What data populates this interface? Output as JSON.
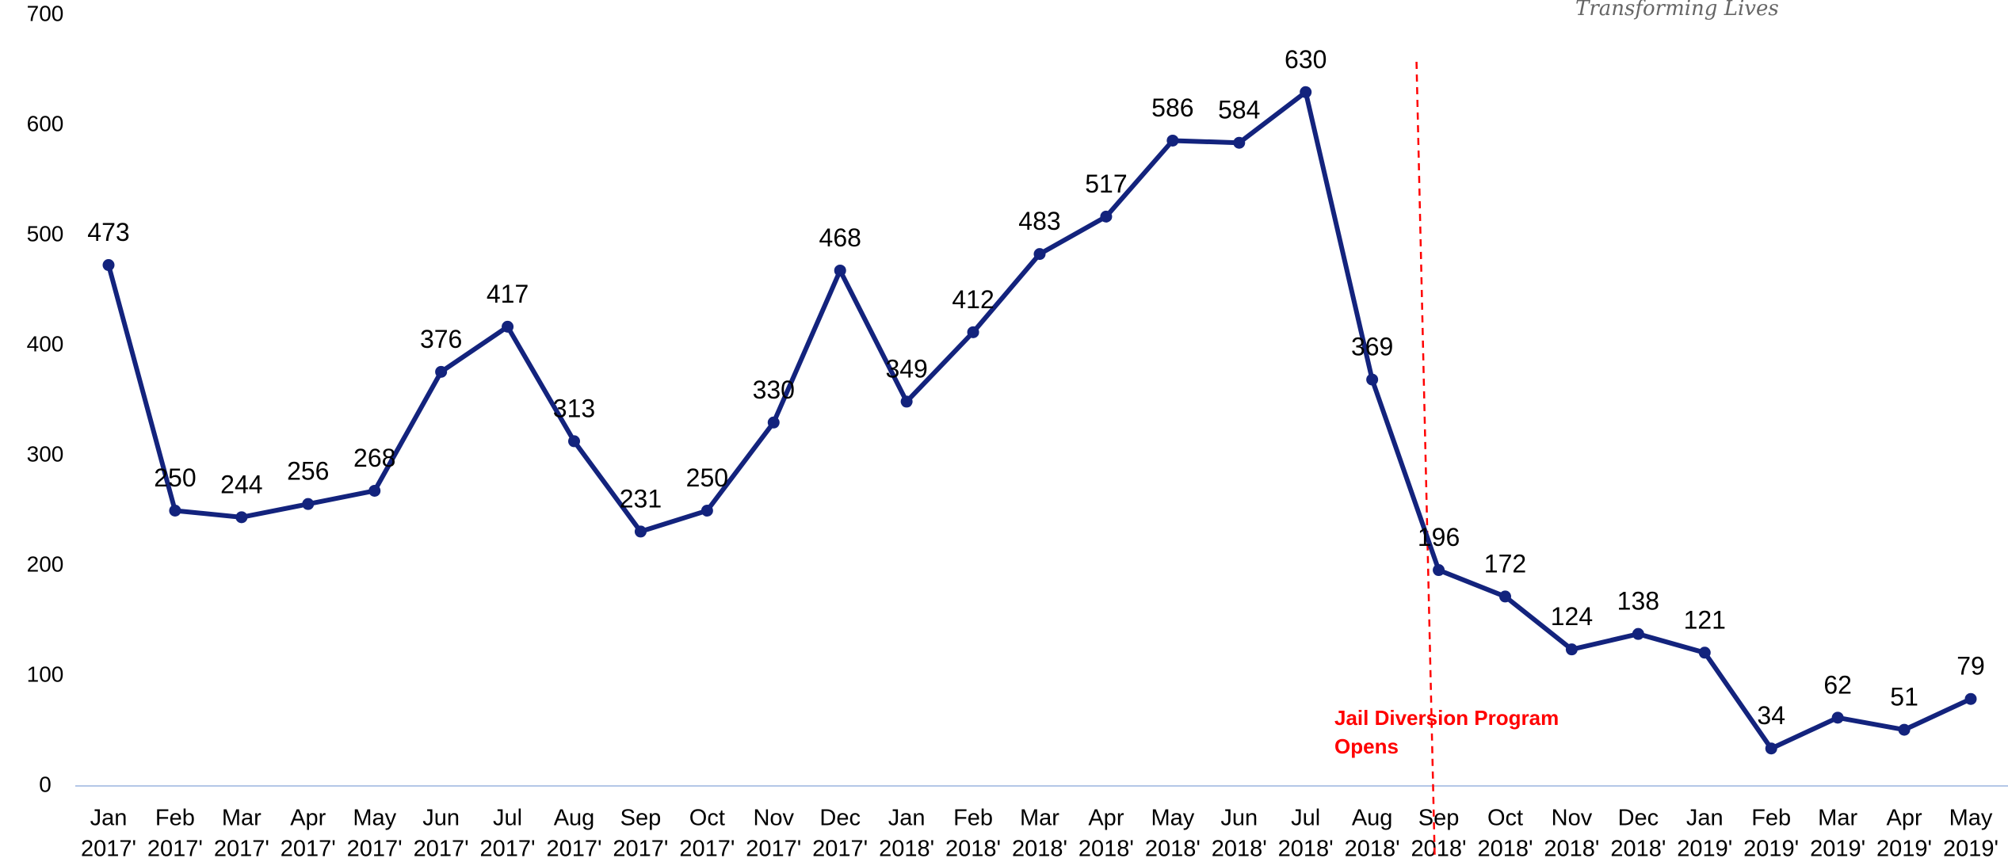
{
  "chart_data": {
    "type": "line",
    "logo_text": "Transforming Lives",
    "categories": [
      [
        "Jan",
        "2017'"
      ],
      [
        "Feb",
        "2017'"
      ],
      [
        "Mar",
        "2017'"
      ],
      [
        "Apr",
        "2017'"
      ],
      [
        "May",
        "2017'"
      ],
      [
        "Jun",
        "2017'"
      ],
      [
        "Jul",
        "2017'"
      ],
      [
        "Aug",
        "2017'"
      ],
      [
        "Sep",
        "2017'"
      ],
      [
        "Oct",
        "2017'"
      ],
      [
        "Nov",
        "2017'"
      ],
      [
        "Dec",
        "2017'"
      ],
      [
        "Jan",
        "2018'"
      ],
      [
        "Feb",
        "2018'"
      ],
      [
        "Mar",
        "2018'"
      ],
      [
        "Apr",
        "2018'"
      ],
      [
        "May",
        "2018'"
      ],
      [
        "Jun",
        "2018'"
      ],
      [
        "Jul",
        "2018'"
      ],
      [
        "Aug",
        "2018'"
      ],
      [
        "Sep",
        "2018'"
      ],
      [
        "Oct",
        "2018'"
      ],
      [
        "Nov",
        "2018'"
      ],
      [
        "Dec",
        "2018'"
      ],
      [
        "Jan",
        "2019'"
      ],
      [
        "Feb",
        "2019'"
      ],
      [
        "Mar",
        "2019'"
      ],
      [
        "Apr",
        "2019'"
      ],
      [
        "May",
        "2019'"
      ]
    ],
    "values": [
      473,
      250,
      244,
      256,
      268,
      376,
      417,
      313,
      231,
      250,
      330,
      468,
      349,
      412,
      483,
      517,
      586,
      584,
      630,
      369,
      196,
      172,
      124,
      138,
      121,
      34,
      62,
      51,
      79
    ],
    "color": "#13237d",
    "ylim": [
      0,
      700
    ],
    "yticks": [
      0,
      100,
      200,
      300,
      400,
      500,
      600,
      700
    ],
    "annotation": {
      "text": [
        "Jail Diversion Program",
        "Opens"
      ],
      "color": "#ff0000"
    }
  }
}
